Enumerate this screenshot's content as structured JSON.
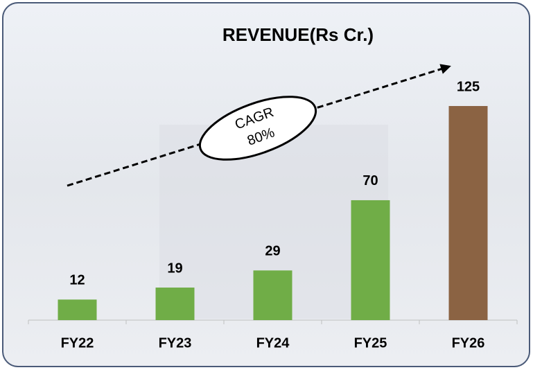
{
  "chart_data": {
    "type": "bar",
    "title": "REVENUE(Rs Cr.)",
    "categories": [
      "FY22",
      "FY23",
      "FY24",
      "FY25",
      "FY26"
    ],
    "values": [
      12,
      19,
      29,
      70,
      125
    ],
    "colors": [
      "#70ad47",
      "#70ad47",
      "#70ad47",
      "#70ad47",
      "#8b6343"
    ],
    "annotation": [
      "CAGR",
      "80%"
    ]
  }
}
